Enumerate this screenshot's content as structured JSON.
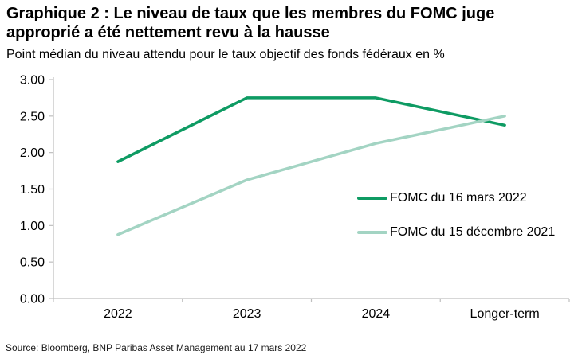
{
  "header": {
    "title_line1": "Graphique 2 : Le niveau de taux que les membres du FOMC juge",
    "title_line2": "approprié a été nettement revu à la hausse",
    "subtitle": "Point médian du niveau attendu pour le taux objectif des fonds fédéraux en %"
  },
  "footer": {
    "source": "Source: Bloomberg, BNP Paribas Asset Management au 17 mars 2022"
  },
  "chart_data": {
    "type": "line",
    "title": "Graphique 2 : Le niveau de taux que les membres du FOMC juge approprié a été nettement revu à la hausse",
    "subtitle": "Point médian du niveau attendu pour le taux objectif des fonds fédéraux en %",
    "categories": [
      "2022",
      "2023",
      "2024",
      "Longer-term"
    ],
    "series": [
      {
        "name": "FOMC du 16 mars 2022",
        "color": "#0e9b63",
        "values": [
          1.875,
          2.75,
          2.75,
          2.375
        ]
      },
      {
        "name": "FOMC du 15 décembre 2021",
        "color": "#a3d4c3",
        "values": [
          0.875,
          1.625,
          2.125,
          2.5
        ]
      }
    ],
    "xlabel": "",
    "ylabel": "",
    "ylim": [
      0,
      3
    ],
    "ytick_step": 0.5,
    "yticks": [
      "0.00",
      "0.50",
      "1.00",
      "1.50",
      "2.00",
      "2.50",
      "3.00"
    ],
    "grid": false,
    "legend_position": "middle-right",
    "axis_color": "#bfbfbf"
  }
}
